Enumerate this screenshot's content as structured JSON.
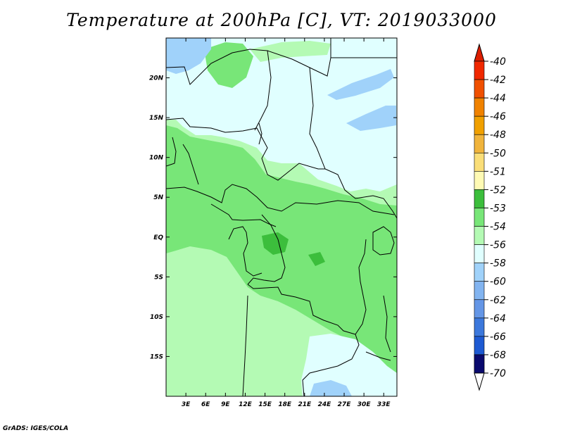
{
  "title": "Temperature at 200hPa [C], VT: 2019033000",
  "footer": "GrADS: IGES/COLA",
  "map": {
    "lon_range": [
      0,
      35
    ],
    "lat_range": [
      -20,
      25
    ],
    "lon_ticks": [
      {
        "value": 3,
        "label": "3E"
      },
      {
        "value": 6,
        "label": "6E"
      },
      {
        "value": 9,
        "label": "9E"
      },
      {
        "value": 12,
        "label": "12E"
      },
      {
        "value": 15,
        "label": "15E"
      },
      {
        "value": 18,
        "label": "18E"
      },
      {
        "value": 21,
        "label": "21E"
      },
      {
        "value": 24,
        "label": "24E"
      },
      {
        "value": 27,
        "label": "27E"
      },
      {
        "value": 30,
        "label": "30E"
      },
      {
        "value": 33,
        "label": "33E"
      }
    ],
    "lat_ticks": [
      {
        "value": 20,
        "label": "20N"
      },
      {
        "value": 15,
        "label": "15N"
      },
      {
        "value": 10,
        "label": "10N"
      },
      {
        "value": 5,
        "label": "5N"
      },
      {
        "value": 0,
        "label": "EQ"
      },
      {
        "value": -5,
        "label": "5S"
      },
      {
        "value": -10,
        "label": "10S"
      },
      {
        "value": -15,
        "label": "15S"
      }
    ]
  },
  "colorbar": {
    "levels": [
      {
        "label": "-40",
        "color": "#f02800"
      },
      {
        "label": "-42",
        "color": "#f05000"
      },
      {
        "label": "-44",
        "color": "#f08200"
      },
      {
        "label": "-46",
        "color": "#f0a000"
      },
      {
        "label": "-48",
        "color": "#f0b43c"
      },
      {
        "label": "-50",
        "color": "#fade78"
      },
      {
        "label": "-51",
        "color": "#fffab4"
      },
      {
        "label": "-52",
        "color": "#3cbe3c"
      },
      {
        "label": "-53",
        "color": "#78e678"
      },
      {
        "label": "-54",
        "color": "#b4fab4"
      },
      {
        "label": "-56",
        "color": "#e0ffff"
      },
      {
        "label": "-58",
        "color": "#a0d2fa"
      },
      {
        "label": "-60",
        "color": "#82b4f0"
      },
      {
        "label": "-62",
        "color": "#6496e6"
      },
      {
        "label": "-64",
        "color": "#3c78dc"
      },
      {
        "label": "-66",
        "color": "#1e5ad2"
      },
      {
        "label": "-68",
        "color": "#1e3cb4"
      },
      {
        "label": "-70",
        "color": "#0a1e96"
      }
    ],
    "top_triangle_color": "#dc1e00",
    "bottom_triangle_color": "#ffffff",
    "bottom_end_color": "#0a0a6e"
  },
  "palette": {
    "light_green": "#b4fab4",
    "mid_green": "#78e678",
    "dark_green": "#3cbe3c",
    "pale_cyan": "#e0ffff",
    "light_blue": "#a0d2fa"
  }
}
